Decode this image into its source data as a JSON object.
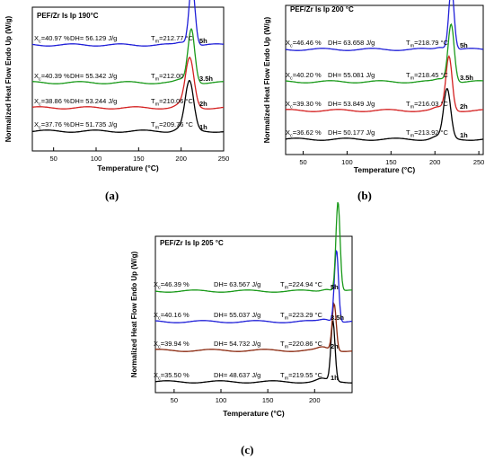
{
  "chart_data": [
    {
      "type": "line",
      "caption": "(a)",
      "title": "PEF/Zr Is Ip 190°C",
      "xlabel": "Temperature (°C)",
      "ylabel": "Normalized Heat Flow Endo Up (W/g)",
      "xlim": [
        25,
        250
      ],
      "xticks": [
        50,
        100,
        150,
        200,
        250
      ],
      "grid": false,
      "series": [
        {
          "name": "1h",
          "color": "#000000",
          "peak_temperature": 209.76,
          "peak_height": 0.55,
          "peak_width": 5,
          "labels": {
            "xc": "X_c=37.76 %",
            "dh": "DH= 51.735 J/g",
            "tm": "T_m=209.76 °C"
          }
        },
        {
          "name": "2h",
          "color": "#d42020",
          "peak_temperature": 210.06,
          "peak_height": 0.55,
          "peak_width": 5,
          "labels": {
            "xc": "X_c=38.86 %",
            "dh": "DH= 53.244 J/g",
            "tm": "T_m=210.06 °C"
          }
        },
        {
          "name": "3.5h",
          "color": "#1a9a1a",
          "peak_temperature": 212.0,
          "peak_height": 0.6,
          "peak_width": 4,
          "labels": {
            "xc": "X_c=40.39 %",
            "dh": "DH= 55.342 J/g",
            "tm": "T_m=212.00"
          }
        },
        {
          "name": "5h",
          "color": "#2020d8",
          "peak_temperature": 212.77,
          "peak_height": 0.7,
          "peak_width": 3.5,
          "labels": {
            "xc": "X_c=40.97 %",
            "dh": "DH= 56.129 J/g",
            "tm": "T_m=212.77 °C"
          }
        }
      ]
    },
    {
      "type": "line",
      "caption": "(b)",
      "title": "PEF/Zr Is Ip 200 °C",
      "xlabel": "Temperature (°C)",
      "ylabel": "Normalized Heat Flow Endo Up (W/g)",
      "xlim": [
        30,
        255
      ],
      "xticks": [
        50,
        100,
        150,
        200,
        250
      ],
      "grid": false,
      "series": [
        {
          "name": "1h",
          "color": "#000000",
          "peak_temperature": 213.92,
          "peak_height": 0.55,
          "peak_width": 4,
          "labels": {
            "xc": "X_c=36.62 %",
            "dh": "DH= 50.177 J/g",
            "tm": "T_m=213.92 °C"
          }
        },
        {
          "name": "2h",
          "color": "#d42020",
          "peak_temperature": 216.03,
          "peak_height": 0.6,
          "peak_width": 3.5,
          "labels": {
            "xc": "X_c=39.30 %",
            "dh": "DH= 53.849 J/g",
            "tm": "T_m=216.03 °C"
          }
        },
        {
          "name": "3.5h",
          "color": "#1a9a1a",
          "peak_temperature": 218.45,
          "peak_height": 0.65,
          "peak_width": 3.5,
          "labels": {
            "xc": "X_c=40.20 %",
            "dh": "DH= 55.081 J/g",
            "tm": "T_m=218.45 °C"
          }
        },
        {
          "name": "5h",
          "color": "#2020d8",
          "peak_temperature": 218.79,
          "peak_height": 0.7,
          "peak_width": 3,
          "labels": {
            "xc": "X_c=46.46 %",
            "dh": "DH= 63.658 J/g",
            "tm": "T_m=218.79 °C"
          }
        }
      ]
    },
    {
      "type": "line",
      "caption": "(c)",
      "title": "PEF/Zr Is Ip 205 °C",
      "xlabel": "Temperature (°C)",
      "ylabel": "Normalized Heat Flow Endo Up (W/g)",
      "xlim": [
        30,
        240
      ],
      "xticks": [
        50,
        100,
        150,
        200
      ],
      "grid": false,
      "series": [
        {
          "name": "1h",
          "color": "#000000",
          "peak_temperature": 219.55,
          "peak_height": 0.7,
          "peak_width": 2.2,
          "labels": {
            "xc": "X_c=35.50 %",
            "dh": "DH= 48.637 J/g",
            "tm": "T_m=219.55 °C"
          }
        },
        {
          "name": "2h",
          "color": "#8b2a10",
          "peak_temperature": 220.86,
          "peak_height": 0.55,
          "peak_width": 2.2,
          "labels": {
            "xc": "X_c=39.94 %",
            "dh": "DH= 54.732 J/g",
            "tm": "T_m=220.86 °C"
          }
        },
        {
          "name": "3.5h",
          "color": "#2020d8",
          "peak_temperature": 223.29,
          "peak_height": 0.85,
          "peak_width": 2.2,
          "labels": {
            "xc": "X_c=40.16 %",
            "dh": "DH= 55.037 J/g",
            "tm": "T_m=223.29 °C"
          }
        },
        {
          "name": "5h",
          "color": "#1a9a1a",
          "peak_temperature": 224.94,
          "peak_height": 1.05,
          "peak_width": 2.2,
          "labels": {
            "xc": "X_c=46.39 %",
            "dh": "DH= 63.567 J/g",
            "tm": "T_m=224.94 °C"
          }
        }
      ]
    }
  ]
}
